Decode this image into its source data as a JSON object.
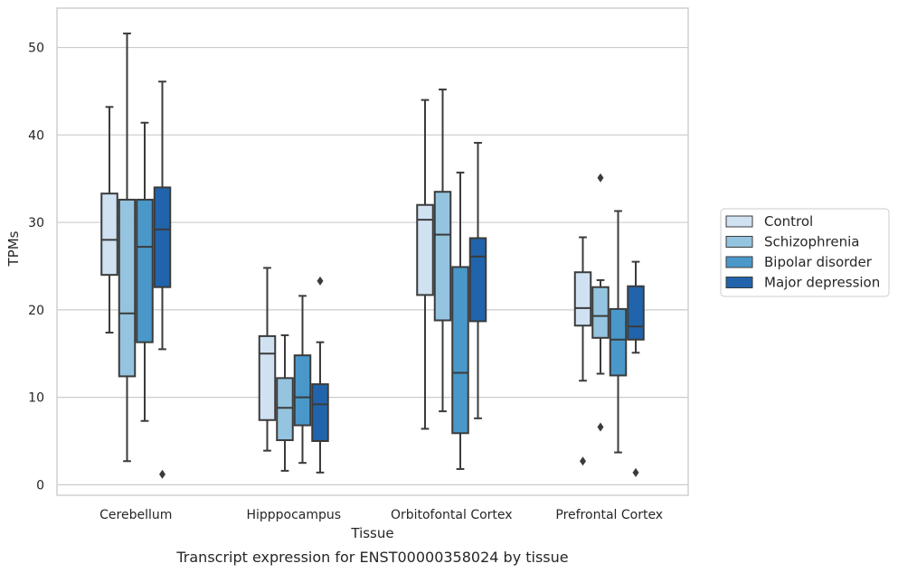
{
  "chart_data": {
    "type": "box",
    "title": "",
    "caption": "Transcript expression for ENST00000358024 by tissue",
    "xlabel": "Tissue",
    "ylabel": "TPMs",
    "ylim": [
      -1.2,
      54.5
    ],
    "yticks": [
      0,
      10,
      20,
      30,
      40,
      50
    ],
    "grid": "horizontal",
    "legend_position": "right",
    "categories": [
      "Cerebellum",
      "Hipppocampus",
      "Orbitofontal Cortex",
      "Prefrontal Cortex"
    ],
    "series": [
      {
        "name": "Control",
        "color": "#d0e1f2",
        "boxes": [
          {
            "whisker_low": 17.4,
            "q1": 24.0,
            "median": 28.0,
            "q3": 33.3,
            "whisker_high": 43.2,
            "outliers": []
          },
          {
            "whisker_low": 3.9,
            "q1": 7.4,
            "median": 15.0,
            "q3": 17.0,
            "whisker_high": 24.8,
            "outliers": []
          },
          {
            "whisker_low": 6.4,
            "q1": 21.7,
            "median": 30.3,
            "q3": 32.0,
            "whisker_high": 44.0,
            "outliers": []
          },
          {
            "whisker_low": 11.9,
            "q1": 18.2,
            "median": 20.2,
            "q3": 24.3,
            "whisker_high": 28.3,
            "outliers": [
              2.7
            ]
          }
        ]
      },
      {
        "name": "Schizophrenia",
        "color": "#94c4df",
        "boxes": [
          {
            "whisker_low": 2.7,
            "q1": 12.4,
            "median": 19.6,
            "q3": 32.6,
            "whisker_high": 51.6,
            "outliers": []
          },
          {
            "whisker_low": 1.6,
            "q1": 5.1,
            "median": 8.8,
            "q3": 12.2,
            "whisker_high": 17.1,
            "outliers": []
          },
          {
            "whisker_low": 8.4,
            "q1": 18.8,
            "median": 28.6,
            "q3": 33.5,
            "whisker_high": 45.2,
            "outliers": []
          },
          {
            "whisker_low": 12.7,
            "q1": 16.8,
            "median": 19.3,
            "q3": 22.6,
            "whisker_high": 23.4,
            "outliers": [
              35.1,
              6.6
            ]
          }
        ]
      },
      {
        "name": "Bipolar disorder",
        "color": "#4a98c9",
        "boxes": [
          {
            "whisker_low": 7.3,
            "q1": 16.3,
            "median": 27.2,
            "q3": 32.6,
            "whisker_high": 41.4,
            "outliers": []
          },
          {
            "whisker_low": 2.5,
            "q1": 6.8,
            "median": 10.0,
            "q3": 14.8,
            "whisker_high": 21.6,
            "outliers": []
          },
          {
            "whisker_low": 1.8,
            "q1": 5.9,
            "median": 12.8,
            "q3": 24.9,
            "whisker_high": 35.7,
            "outliers": []
          },
          {
            "whisker_low": 3.7,
            "q1": 12.5,
            "median": 16.6,
            "q3": 20.1,
            "whisker_high": 31.3,
            "outliers": []
          }
        ]
      },
      {
        "name": "Major depression",
        "color": "#2164ab",
        "boxes": [
          {
            "whisker_low": 15.5,
            "q1": 22.6,
            "median": 29.2,
            "q3": 34.0,
            "whisker_high": 46.1,
            "outliers": [
              1.2
            ]
          },
          {
            "whisker_low": 1.4,
            "q1": 5.0,
            "median": 9.2,
            "q3": 11.5,
            "whisker_high": 16.3,
            "outliers": [
              23.3
            ]
          },
          {
            "whisker_low": 7.6,
            "q1": 18.7,
            "median": 26.1,
            "q3": 28.2,
            "whisker_high": 39.1,
            "outliers": []
          },
          {
            "whisker_low": 15.1,
            "q1": 16.6,
            "median": 18.1,
            "q3": 22.7,
            "whisker_high": 25.5,
            "outliers": [
              1.4
            ]
          }
        ]
      }
    ]
  }
}
